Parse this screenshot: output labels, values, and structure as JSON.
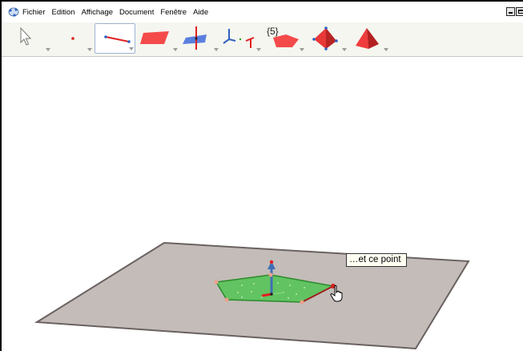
{
  "menubar": {
    "app_icon": "geogebra-icon",
    "items": [
      "Fichier",
      "Edition",
      "Affichage",
      "Document",
      "Fenêtre",
      "Aide"
    ]
  },
  "toolbar": {
    "tools": [
      {
        "name": "move-tool",
        "icon": "arrow-cursor-icon"
      },
      {
        "name": "point-tool",
        "icon": "point-icon"
      },
      {
        "name": "segment-tool",
        "icon": "segment-icon",
        "selected": true
      },
      {
        "name": "plane-tool",
        "icon": "plane-icon"
      },
      {
        "name": "perpendicular-tool",
        "icon": "perpendicular-plane-icon"
      },
      {
        "name": "axes-tool",
        "icon": "axes-icon"
      },
      {
        "name": "regular-polygon-tool",
        "icon": "regular-polygon-icon",
        "label": "{5}"
      },
      {
        "name": "sphere-tool",
        "icon": "polyhedron-icon"
      },
      {
        "name": "pyramid-tool",
        "icon": "pyramid-icon"
      }
    ]
  },
  "tooltip": {
    "text": "…et ce point"
  },
  "colors": {
    "accent_red": "#e02020",
    "plane_gray": "#c2bbb8",
    "polygon_green": "#4caf50",
    "axis_blue": "#3060c0"
  }
}
